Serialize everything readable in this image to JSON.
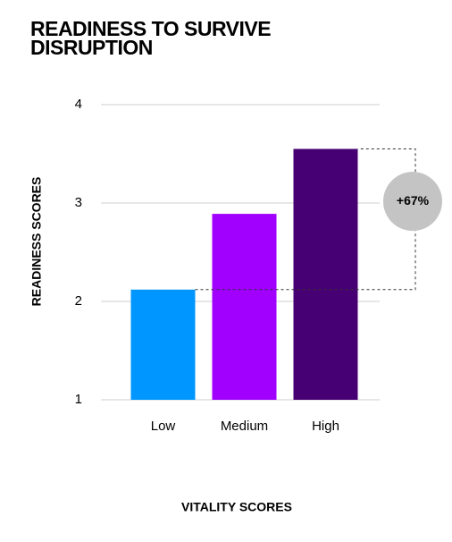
{
  "chart_data": {
    "type": "bar",
    "title": "READINESS TO SURVIVE DISRUPTION",
    "y_label": "READINESS SCORES",
    "x_label": "VITALITY SCORES",
    "categories": [
      "Low",
      "Medium",
      "High"
    ],
    "values": [
      2.12,
      2.89,
      3.55
    ],
    "colors": [
      "#0096ff",
      "#a100ff",
      "#460073"
    ],
    "ylim": [
      1,
      4
    ],
    "yticks": [
      1,
      2,
      3,
      4
    ],
    "grid": true,
    "annotation": "+67%"
  }
}
